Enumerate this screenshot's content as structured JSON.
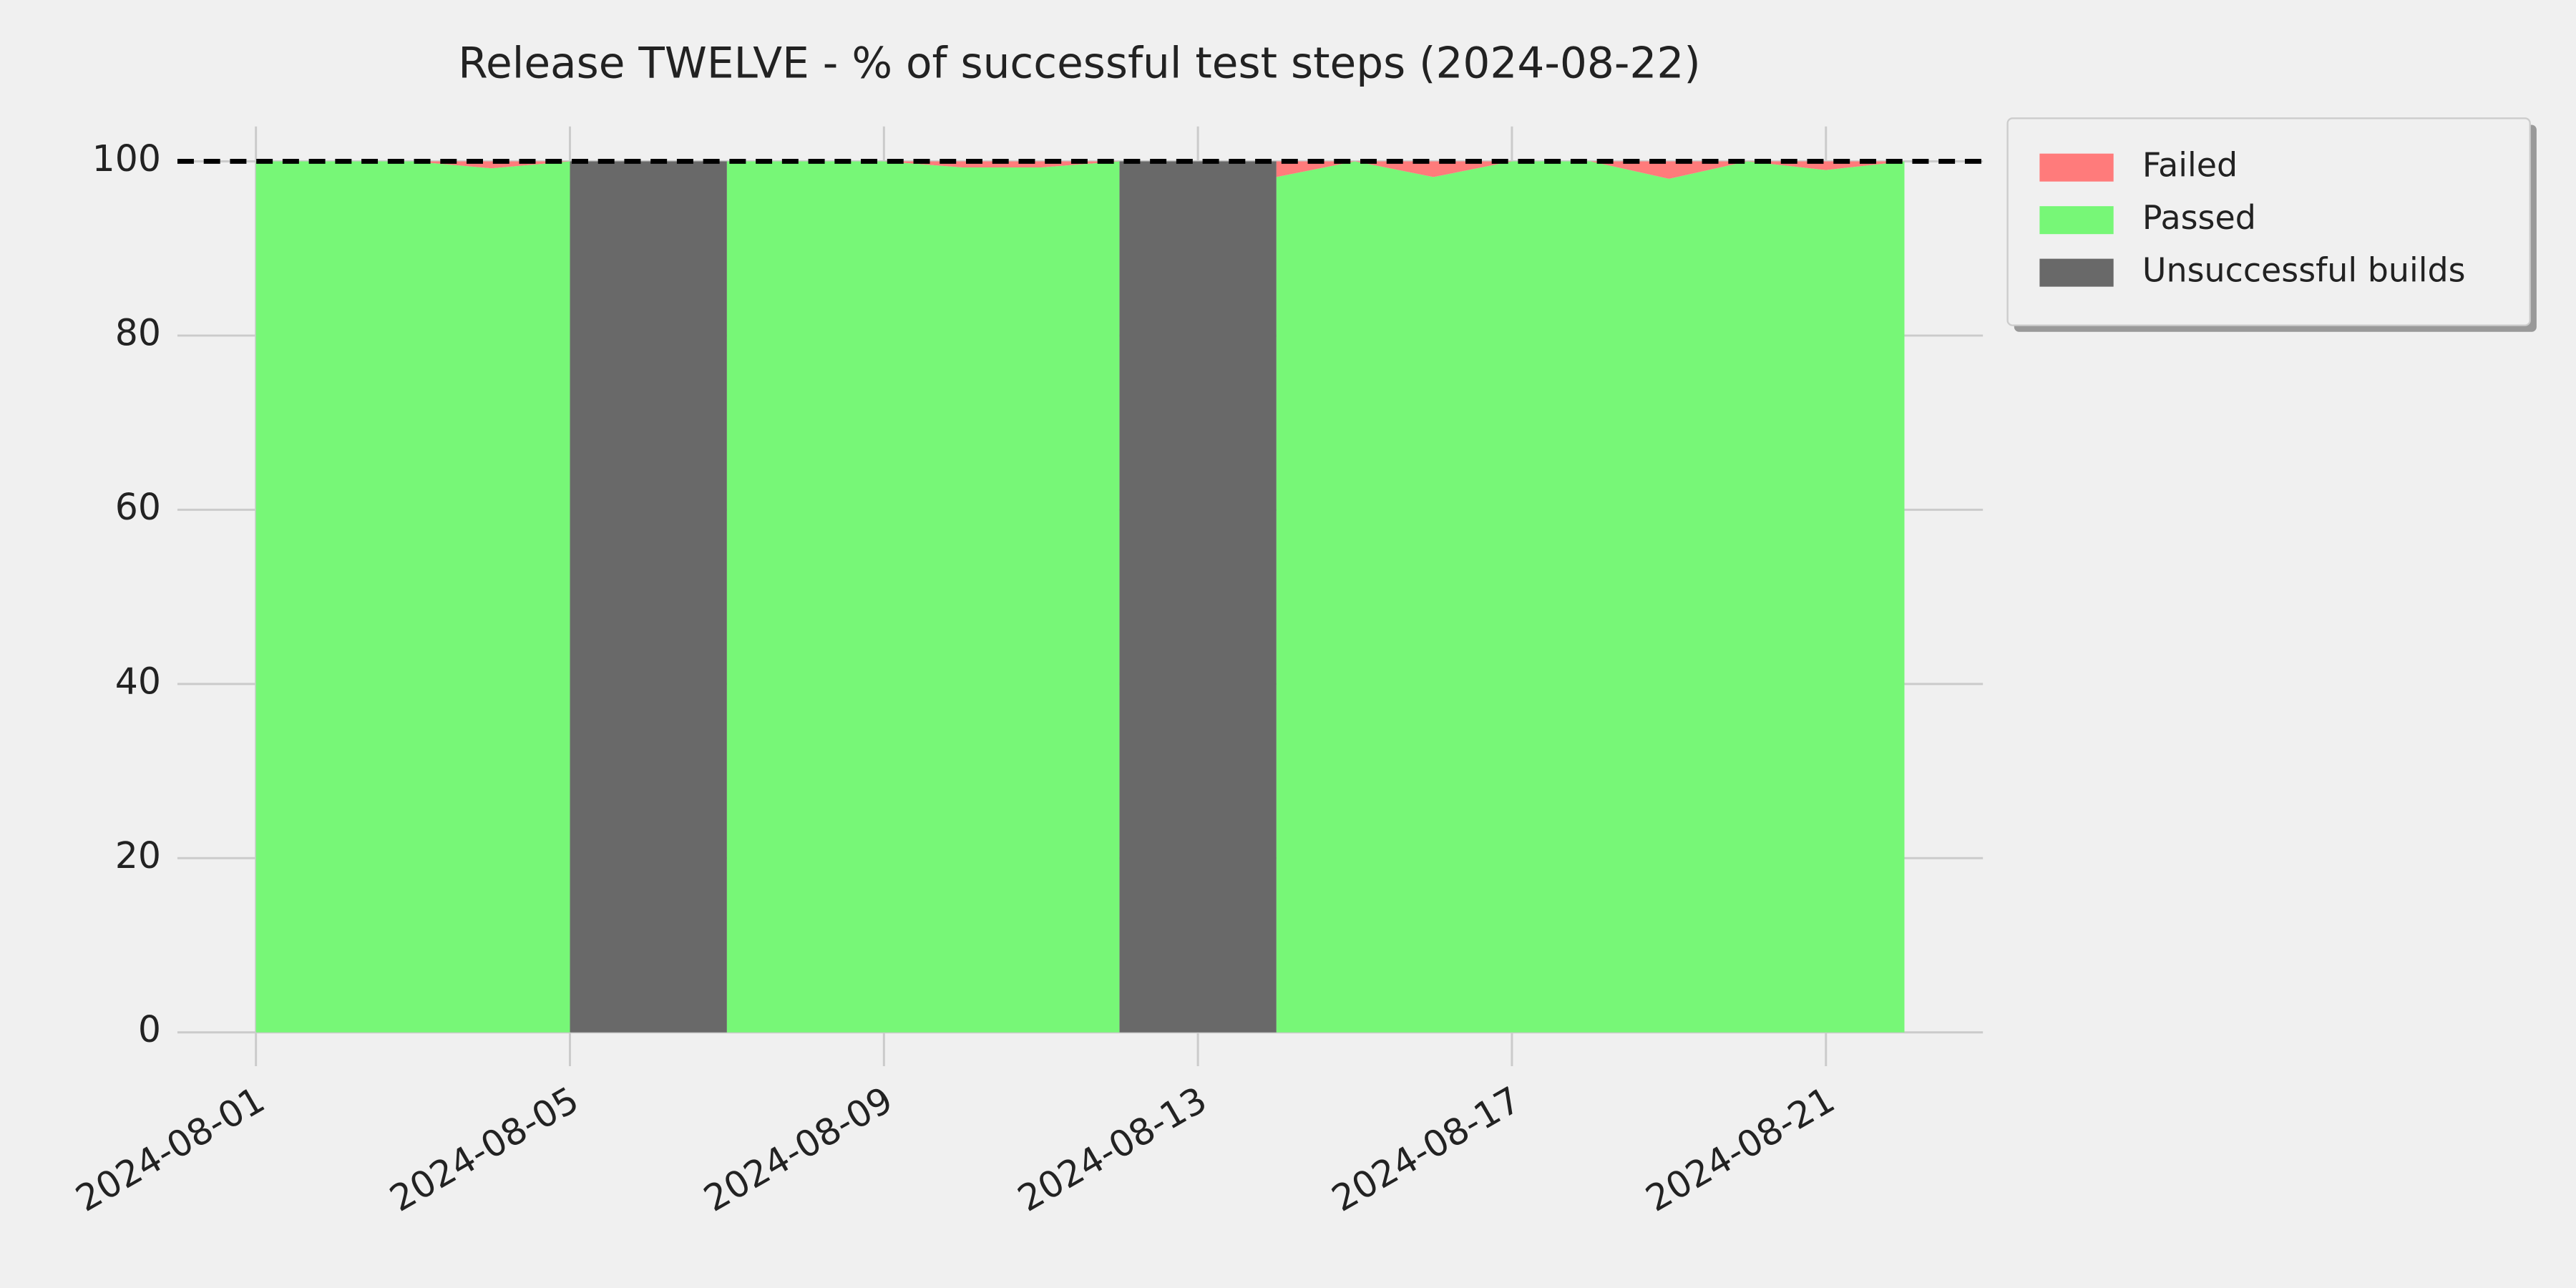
{
  "chart_data": {
    "type": "stacked_area",
    "title": "Release TWELVE - % of successful test steps (2024-08-22)",
    "x": [
      "2024-08-01",
      "2024-08-02",
      "2024-08-03",
      "2024-08-04",
      "2024-08-05",
      "2024-08-06",
      "2024-08-07",
      "2024-08-08",
      "2024-08-09",
      "2024-08-10",
      "2024-08-11",
      "2024-08-12",
      "2024-08-13",
      "2024-08-14",
      "2024-08-15",
      "2024-08-16",
      "2024-08-17",
      "2024-08-18",
      "2024-08-19",
      "2024-08-20",
      "2024-08-21",
      "2024-08-22"
    ],
    "series": [
      {
        "name": "Failed",
        "color": "#ff7b7b",
        "stack": true,
        "values": [
          0,
          0,
          0,
          0.8,
          0,
          null,
          0,
          0,
          0,
          0.7,
          0.7,
          0,
          null,
          1.8,
          0,
          1.8,
          0,
          0,
          2,
          0,
          1,
          0
        ]
      },
      {
        "name": "Passed",
        "color": "#77f777",
        "stack": true,
        "values": [
          100,
          100,
          100,
          99.2,
          100,
          null,
          100,
          100,
          100,
          99.3,
          99.3,
          100,
          null,
          98.2,
          100,
          98.2,
          100,
          100,
          98,
          100,
          99,
          100
        ]
      },
      {
        "name": "Unsuccessful builds",
        "color": "#696969",
        "stack": false,
        "values": [
          null,
          null,
          null,
          null,
          100,
          100,
          100,
          null,
          null,
          null,
          null,
          100,
          100,
          100,
          null,
          null,
          null,
          null,
          null,
          null,
          null,
          null
        ]
      }
    ],
    "xlim": [
      "2024-07-31",
      "2024-08-23"
    ],
    "xticks": [
      "2024-08-01",
      "2024-08-05",
      "2024-08-09",
      "2024-08-13",
      "2024-08-17",
      "2024-08-21"
    ],
    "ylim": [
      -2,
      104
    ],
    "yticks": [
      0,
      20,
      40,
      60,
      80,
      100
    ],
    "reference_line": 100,
    "grid": true,
    "legend": "outside upper right"
  }
}
